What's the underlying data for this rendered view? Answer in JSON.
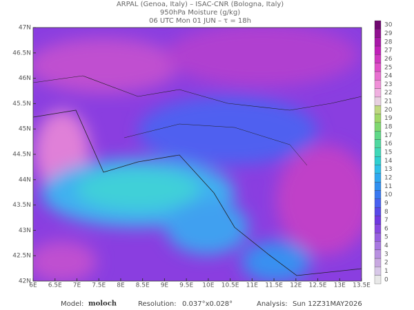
{
  "header": {
    "line1": "ARPAL (Genoa, Italy)  –  ISAC-CNR (Bologna, Italy)",
    "line2": "950hPa Moisture (g/kg)",
    "line3": "06 UTC Mon 01 JUN  –  τ = 18h"
  },
  "map": {
    "lat_labels": [
      "47N",
      "46.5N",
      "46N",
      "45.5N",
      "45N",
      "44.5N",
      "44N",
      "43.5N",
      "43N",
      "42.5N",
      "42N"
    ],
    "lon_labels": [
      "6E",
      "6.5E",
      "7E",
      "7.5E",
      "8E",
      "8.5E",
      "9E",
      "9.5E",
      "10E",
      "10.5E",
      "11E",
      "11.5E",
      "12E",
      "12.5E",
      "13E",
      "13.5E"
    ]
  },
  "colorbar": {
    "labels": [
      0,
      1,
      2,
      3,
      4,
      5,
      6,
      7,
      8,
      9,
      10,
      11,
      12,
      13,
      14,
      15,
      16,
      17,
      18,
      19,
      20,
      21,
      22,
      23,
      24,
      25,
      26,
      27,
      28,
      29,
      30
    ],
    "colors": [
      "#e8e8e8",
      "#d8c8e8",
      "#c8a8e0",
      "#b890e0",
      "#a878e0",
      "#9860e0",
      "#8848e0",
      "#7038e0",
      "#5848e8",
      "#4860f0",
      "#3878f0",
      "#3090f0",
      "#30a8f0",
      "#30c0e8",
      "#30d0d0",
      "#40d8b8",
      "#50d8a0",
      "#60d888",
      "#80d870",
      "#a0d868",
      "#c0d880",
      "#e8d0e0",
      "#f0b0e0",
      "#f090d8",
      "#e870d0",
      "#e050c8",
      "#d038c0",
      "#c020b8",
      "#a818a8",
      "#901090",
      "#700870"
    ]
  },
  "footer": {
    "model_label": "Model:",
    "model": "moloch",
    "resolution_label": "Resolution:",
    "resolution": "0.037°x0.028°",
    "analysis_label": "Analysis:",
    "analysis": "Sun 12Z31MAY2026"
  }
}
